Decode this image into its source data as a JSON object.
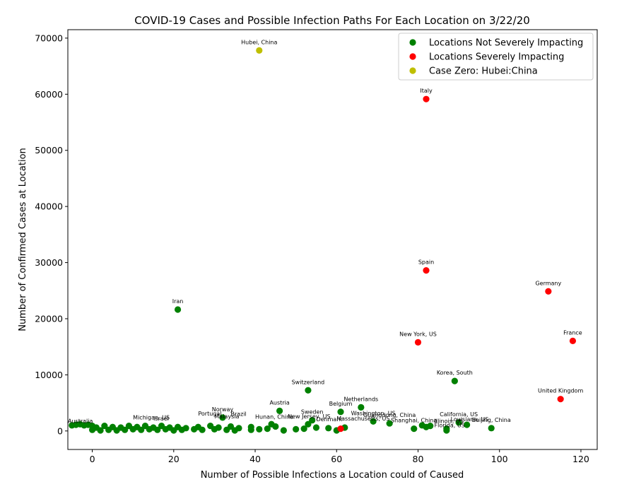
{
  "chart_data": {
    "type": "scatter",
    "title": "COVID-19 Cases and Possible Infection Paths For Each Location on 3/22/20",
    "xlabel": "Number of Possible Infections a Location could of Caused",
    "ylabel": "Number of Confirmed Cases at Location",
    "xlim": [
      -6,
      124
    ],
    "ylim": [
      -3300,
      71500
    ],
    "xticks": [
      0,
      20,
      40,
      60,
      80,
      100,
      120
    ],
    "yticks": [
      0,
      10000,
      20000,
      30000,
      40000,
      50000,
      60000,
      70000
    ],
    "xtick_labels": [
      "0",
      "20",
      "40",
      "60",
      "80",
      "100",
      "120"
    ],
    "ytick_labels": [
      "0",
      "10000",
      "20000",
      "30000",
      "40000",
      "50000",
      "60000",
      "70000"
    ],
    "grid": false,
    "legend_position": "top-right",
    "series": [
      {
        "name": "Locations Not Severely Impacting",
        "color": "#008000",
        "points": [
          {
            "x": 21,
            "y": 21638,
            "label": "Iran"
          },
          {
            "x": 89,
            "y": 8897,
            "label": "Korea, South"
          },
          {
            "x": 53,
            "y": 7245,
            "label": "Switzerland"
          },
          {
            "x": 66,
            "y": 4204,
            "label": "Netherlands"
          },
          {
            "x": 46,
            "y": 3582,
            "label": "Austria"
          },
          {
            "x": 61,
            "y": 3401,
            "label": "Belgium"
          },
          {
            "x": 32,
            "y": 2383,
            "label": "Norway"
          },
          {
            "x": 69,
            "y": 1700,
            "label": "Washington, US"
          },
          {
            "x": 73,
            "y": 1350,
            "label": "Guangdong, China"
          },
          {
            "x": 90,
            "y": 1500,
            "label": "California, US"
          },
          {
            "x": 54,
            "y": 1900,
            "label": "Sweden"
          },
          {
            "x": 98,
            "y": 500,
            "label": "Beijing, China"
          },
          {
            "x": 79,
            "y": 400,
            "label": "Shanghai, China"
          },
          {
            "x": 92,
            "y": 1100,
            "label": ""
          },
          {
            "x": 82,
            "y": 700,
            "label": ""
          },
          {
            "x": 83,
            "y": 900,
            "label": ""
          },
          {
            "x": 81,
            "y": 1000,
            "label": ""
          },
          {
            "x": 87,
            "y": 400,
            "label": ""
          },
          {
            "x": 87,
            "y": 100,
            "label": ""
          },
          {
            "x": 62,
            "y": 600,
            "label": ""
          },
          {
            "x": 60,
            "y": 100,
            "label": ""
          },
          {
            "x": 58,
            "y": 500,
            "label": ""
          },
          {
            "x": 55,
            "y": 600,
            "label": ""
          },
          {
            "x": 52,
            "y": 400,
            "label": ""
          },
          {
            "x": 53,
            "y": 1200,
            "label": ""
          },
          {
            "x": 50,
            "y": 300,
            "label": ""
          },
          {
            "x": 47,
            "y": 100,
            "label": ""
          },
          {
            "x": 45,
            "y": 800,
            "label": ""
          },
          {
            "x": 44,
            "y": 1200,
            "label": ""
          },
          {
            "x": 43,
            "y": 400,
            "label": ""
          },
          {
            "x": 41,
            "y": 300,
            "label": ""
          },
          {
            "x": 39,
            "y": 200,
            "label": ""
          },
          {
            "x": 39,
            "y": 700,
            "label": ""
          },
          {
            "x": 36,
            "y": 500,
            "label": ""
          },
          {
            "x": 35,
            "y": 100,
            "label": ""
          },
          {
            "x": 34,
            "y": 800,
            "label": ""
          },
          {
            "x": 33,
            "y": 200,
            "label": ""
          },
          {
            "x": 31,
            "y": 600,
            "label": ""
          },
          {
            "x": 30,
            "y": 300,
            "label": ""
          },
          {
            "x": 29,
            "y": 900,
            "label": ""
          },
          {
            "x": 27,
            "y": 200,
            "label": ""
          },
          {
            "x": 26,
            "y": 700,
            "label": ""
          },
          {
            "x": 25,
            "y": 300,
            "label": ""
          },
          {
            "x": 23,
            "y": 500,
            "label": ""
          },
          {
            "x": 22,
            "y": 200,
            "label": ""
          },
          {
            "x": 21,
            "y": 700,
            "label": ""
          },
          {
            "x": 20,
            "y": 100,
            "label": ""
          },
          {
            "x": 19,
            "y": 600,
            "label": ""
          },
          {
            "x": 18,
            "y": 300,
            "label": ""
          },
          {
            "x": 17,
            "y": 900,
            "label": ""
          },
          {
            "x": 16,
            "y": 200,
            "label": ""
          },
          {
            "x": 15,
            "y": 600,
            "label": ""
          },
          {
            "x": 14,
            "y": 300,
            "label": ""
          },
          {
            "x": 13,
            "y": 900,
            "label": ""
          },
          {
            "x": 12,
            "y": 200,
            "label": ""
          },
          {
            "x": 11,
            "y": 700,
            "label": ""
          },
          {
            "x": 10,
            "y": 300,
            "label": ""
          },
          {
            "x": 9,
            "y": 900,
            "label": ""
          },
          {
            "x": 8,
            "y": 200,
            "label": ""
          },
          {
            "x": 7,
            "y": 600,
            "label": ""
          },
          {
            "x": 6,
            "y": 100,
            "label": ""
          },
          {
            "x": 5,
            "y": 700,
            "label": ""
          },
          {
            "x": 4,
            "y": 200,
            "label": ""
          },
          {
            "x": 3,
            "y": 900,
            "label": ""
          },
          {
            "x": 2,
            "y": 100,
            "label": ""
          },
          {
            "x": 1,
            "y": 600,
            "label": ""
          },
          {
            "x": 0,
            "y": 200,
            "label": ""
          },
          {
            "x": 0,
            "y": 900,
            "label": ""
          },
          {
            "x": -1,
            "y": 1100,
            "label": ""
          },
          {
            "x": -2,
            "y": 1000,
            "label": ""
          },
          {
            "x": -3,
            "y": 1200,
            "label": ""
          },
          {
            "x": -4,
            "y": 1100,
            "label": ""
          },
          {
            "x": -5,
            "y": 1000,
            "label": ""
          }
        ]
      },
      {
        "name": "Locations Severely Impacting",
        "color": "#ff0000",
        "points": [
          {
            "x": 82,
            "y": 59138,
            "label": "Italy"
          },
          {
            "x": 82,
            "y": 28603,
            "label": "Spain"
          },
          {
            "x": 112,
            "y": 24873,
            "label": "Germany"
          },
          {
            "x": 118,
            "y": 16044,
            "label": "France"
          },
          {
            "x": 80,
            "y": 15793,
            "label": "New York, US"
          },
          {
            "x": 115,
            "y": 5683,
            "label": "United Kingdom"
          },
          {
            "x": 61,
            "y": 400,
            "label": ""
          }
        ]
      },
      {
        "name": "Case Zero: Hubei:China",
        "color": "#bfbf00",
        "points": [
          {
            "x": 41,
            "y": 67800,
            "label": "Hubei, China"
          }
        ]
      }
    ],
    "cluttered_labels": [
      {
        "x": 26,
        "y": 2500,
        "text": "Portugal"
      },
      {
        "x": 34,
        "y": 2400,
        "text": "Brazil"
      },
      {
        "x": 48,
        "y": 2000,
        "text": "New Jersey, US"
      },
      {
        "x": 60,
        "y": 1600,
        "text": "Massachusetts, US"
      },
      {
        "x": 10,
        "y": 1800,
        "text": "Michigan, US"
      },
      {
        "x": -6,
        "y": 1200,
        "text": "Australia"
      },
      {
        "x": 84,
        "y": 1200,
        "text": "Illinois, US"
      },
      {
        "x": 84,
        "y": 400,
        "text": "Florida, US"
      },
      {
        "x": 30,
        "y": 2000,
        "text": "Malaysia"
      },
      {
        "x": 40,
        "y": 1900,
        "text": "Hunan, China"
      },
      {
        "x": 55,
        "y": 1500,
        "text": "Denmark"
      },
      {
        "x": 88,
        "y": 1500,
        "text": "Louisiana, US"
      },
      {
        "x": 15,
        "y": 1600,
        "text": "Israel"
      }
    ]
  }
}
